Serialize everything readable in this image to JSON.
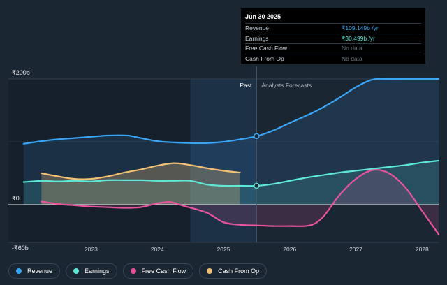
{
  "tooltip": {
    "date": "Jun 30 2025",
    "rows": [
      {
        "label": "Revenue",
        "value": "₹109.149b",
        "unit": " /yr",
        "color": "#3ba5f5"
      },
      {
        "label": "Earnings",
        "value": "₹30.499b",
        "unit": " /yr",
        "color": "#5ee8d7"
      },
      {
        "label": "Free Cash Flow",
        "value": "No data",
        "unit": "",
        "color": "#6b7680"
      },
      {
        "label": "Cash From Op",
        "value": "No data",
        "unit": "",
        "color": "#6b7680"
      }
    ]
  },
  "legend": [
    {
      "label": "Revenue",
      "color": "#3ba5f5"
    },
    {
      "label": "Earnings",
      "color": "#5ee8d7"
    },
    {
      "label": "Free Cash Flow",
      "color": "#e8559d"
    },
    {
      "label": "Cash From Op",
      "color": "#f2c075"
    }
  ],
  "chart_data": {
    "type": "area",
    "title": "",
    "xlabel": "",
    "ylabel": "",
    "y_ticks": [
      {
        "value": 200,
        "label": "₹200b"
      },
      {
        "value": 0,
        "label": "₹0"
      },
      {
        "value": -60,
        "label": "-₹60b"
      }
    ],
    "x_ticks": [
      {
        "value": 2023,
        "label": "2023"
      },
      {
        "value": 2024,
        "label": "2024"
      },
      {
        "value": 2025,
        "label": "2025"
      },
      {
        "value": 2026,
        "label": "2026"
      },
      {
        "value": 2027,
        "label": "2027"
      },
      {
        "value": 2028,
        "label": "2028"
      }
    ],
    "xlim": [
      2021.75,
      2028.25
    ],
    "ylim": [
      -60,
      200
    ],
    "grid": true,
    "past_label": "Past",
    "forecast_label": "Analysts Forecasts",
    "divider_x": 2025.5,
    "highlight_start_x": 2024.5,
    "series": [
      {
        "name": "Revenue",
        "color": "#3ba5f5",
        "points": [
          [
            2021.98,
            97
          ],
          [
            2022.25,
            101
          ],
          [
            2022.5,
            104
          ],
          [
            2022.75,
            106
          ],
          [
            2023.0,
            108
          ],
          [
            2023.25,
            110
          ],
          [
            2023.55,
            110
          ],
          [
            2023.75,
            106
          ],
          [
            2024.0,
            101
          ],
          [
            2024.25,
            99
          ],
          [
            2024.5,
            98
          ],
          [
            2024.75,
            98
          ],
          [
            2025.0,
            100
          ],
          [
            2025.25,
            104
          ],
          [
            2025.5,
            109
          ],
          [
            2025.75,
            118
          ],
          [
            2026.0,
            130
          ],
          [
            2026.4,
            149
          ],
          [
            2026.75,
            170
          ],
          [
            2027.0,
            187
          ],
          [
            2027.25,
            199
          ],
          [
            2027.5,
            200
          ],
          [
            2027.75,
            200
          ],
          [
            2028.25,
            200
          ]
        ]
      },
      {
        "name": "Earnings",
        "color": "#5ee8d7",
        "points": [
          [
            2021.98,
            36
          ],
          [
            2022.25,
            38
          ],
          [
            2022.5,
            37
          ],
          [
            2022.75,
            38
          ],
          [
            2023.0,
            37
          ],
          [
            2023.25,
            39
          ],
          [
            2023.5,
            39
          ],
          [
            2023.75,
            39
          ],
          [
            2024.0,
            38
          ],
          [
            2024.25,
            38
          ],
          [
            2024.5,
            38
          ],
          [
            2024.75,
            32
          ],
          [
            2025.0,
            30
          ],
          [
            2025.25,
            30
          ],
          [
            2025.5,
            30
          ],
          [
            2025.75,
            33
          ],
          [
            2026.0,
            38
          ],
          [
            2026.25,
            43
          ],
          [
            2026.5,
            47
          ],
          [
            2026.75,
            51
          ],
          [
            2027.0,
            54
          ],
          [
            2027.25,
            57
          ],
          [
            2027.5,
            60
          ],
          [
            2027.75,
            63
          ],
          [
            2028.0,
            67
          ],
          [
            2028.25,
            70
          ]
        ]
      },
      {
        "name": "Free Cash Flow",
        "color": "#e8559d",
        "points": [
          [
            2022.25,
            5
          ],
          [
            2022.5,
            1
          ],
          [
            2022.75,
            -1
          ],
          [
            2023.0,
            -3
          ],
          [
            2023.25,
            -4
          ],
          [
            2023.5,
            -5
          ],
          [
            2023.75,
            -4
          ],
          [
            2024.0,
            2
          ],
          [
            2024.2,
            4
          ],
          [
            2024.4,
            -2
          ],
          [
            2024.75,
            -13
          ],
          [
            2025.0,
            -28
          ],
          [
            2025.25,
            -32
          ],
          [
            2025.5,
            -33
          ],
          [
            2025.75,
            -34
          ],
          [
            2026.0,
            -34
          ],
          [
            2026.3,
            -33
          ],
          [
            2026.5,
            -20
          ],
          [
            2026.75,
            15
          ],
          [
            2027.0,
            41
          ],
          [
            2027.25,
            55
          ],
          [
            2027.5,
            50
          ],
          [
            2027.75,
            27
          ],
          [
            2028.0,
            -10
          ],
          [
            2028.25,
            -47
          ]
        ]
      },
      {
        "name": "Cash From Op",
        "color": "#f2c075",
        "points": [
          [
            2022.25,
            50
          ],
          [
            2022.5,
            45
          ],
          [
            2022.75,
            41
          ],
          [
            2023.0,
            41
          ],
          [
            2023.25,
            45
          ],
          [
            2023.5,
            51
          ],
          [
            2023.75,
            56
          ],
          [
            2024.0,
            62
          ],
          [
            2024.25,
            66
          ],
          [
            2024.5,
            63
          ],
          [
            2024.75,
            58
          ],
          [
            2025.0,
            54
          ],
          [
            2025.25,
            51
          ]
        ]
      }
    ]
  }
}
